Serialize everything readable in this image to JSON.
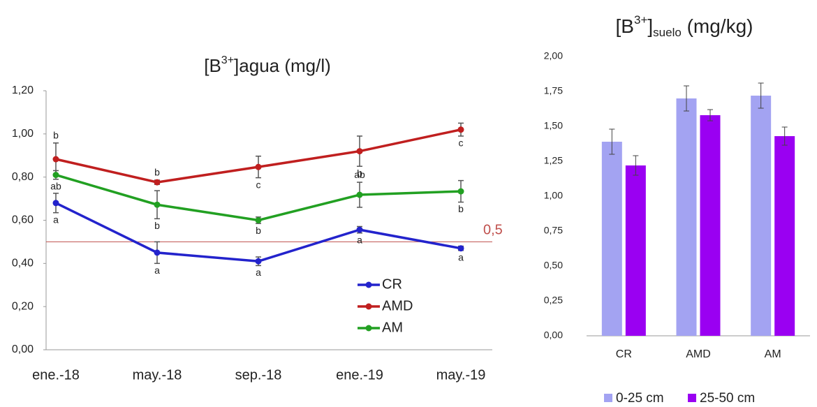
{
  "chart_data": [
    {
      "type": "line",
      "title": [
        "[B",
        "3+",
        "]agua (mg/l)"
      ],
      "categories": [
        "ene.-18",
        "may.-18",
        "sep.-18",
        "ene.-19",
        "may.-19"
      ],
      "ylim": [
        0,
        1.2
      ],
      "yticks": [
        {
          "value": 0,
          "label": "0,00"
        },
        {
          "value": 0.2,
          "label": "0,20"
        },
        {
          "value": 0.4,
          "label": "0,40"
        },
        {
          "value": 0.6,
          "label": "0,60"
        },
        {
          "value": 0.8,
          "label": "0,80"
        },
        {
          "value": 1.0,
          "label": "1,00"
        },
        {
          "value": 1.2,
          "label": "1,20"
        }
      ],
      "grid": false,
      "legend": "lower right",
      "reference": {
        "value": 0.5,
        "label": "0,5",
        "color": "#c0504d"
      },
      "series": [
        {
          "name": "CR",
          "color": "#2323cc",
          "values": [
            0.68,
            0.45,
            0.41,
            0.556,
            0.47
          ],
          "errors": [
            0.045,
            0.05,
            0.02,
            0.015,
            0.01
          ],
          "letters": [
            "a",
            "a",
            "a",
            "a",
            "a"
          ],
          "letter_pos": [
            "below",
            "below",
            "below",
            "below",
            "below"
          ]
        },
        {
          "name": "AMD",
          "color": "#c01f1f",
          "values": [
            0.883,
            0.776,
            0.847,
            0.92,
            1.02
          ],
          "errors": [
            0.075,
            0.01,
            0.05,
            0.07,
            0.03
          ],
          "letters": [
            "b",
            "b",
            "c",
            "b",
            "c"
          ],
          "letter_pos": [
            "above",
            "above",
            "below",
            "below",
            "below"
          ]
        },
        {
          "name": "AM",
          "color": "#22a022",
          "values": [
            0.81,
            0.672,
            0.6,
            0.718,
            0.734
          ],
          "errors": [
            0.02,
            0.065,
            0.015,
            0.058,
            0.05
          ],
          "letters": [
            "ab",
            "b",
            "b",
            "ab",
            "b"
          ],
          "letter_pos": [
            "below",
            "below",
            "below",
            "above",
            "below"
          ]
        }
      ]
    },
    {
      "type": "bar",
      "title": [
        "[B",
        "3+",
        "]",
        "suelo",
        " (mg/kg)"
      ],
      "categories": [
        "CR",
        "AMD",
        "AM"
      ],
      "ylim": [
        0,
        2
      ],
      "yticks": [
        {
          "value": 0,
          "label": "0,00"
        },
        {
          "value": 0.25,
          "label": "0,25"
        },
        {
          "value": 0.5,
          "label": "0,50"
        },
        {
          "value": 0.75,
          "label": "0,75"
        },
        {
          "value": 1.0,
          "label": "1,00"
        },
        {
          "value": 1.25,
          "label": "1,25"
        },
        {
          "value": 1.5,
          "label": "1,50"
        },
        {
          "value": 1.75,
          "label": "1,75"
        },
        {
          "value": 2.0,
          "label": "2,00"
        }
      ],
      "grid": false,
      "legend": "bottom",
      "series": [
        {
          "name": "0-25 cm",
          "color": "#a3a3f2",
          "values": [
            1.39,
            1.7,
            1.72
          ],
          "errors": [
            0.09,
            0.09,
            0.09
          ]
        },
        {
          "name": "25-50 cm",
          "color": "#9a00f2",
          "values": [
            1.22,
            1.58,
            1.43
          ],
          "errors": [
            0.07,
            0.04,
            0.065
          ]
        }
      ]
    }
  ]
}
